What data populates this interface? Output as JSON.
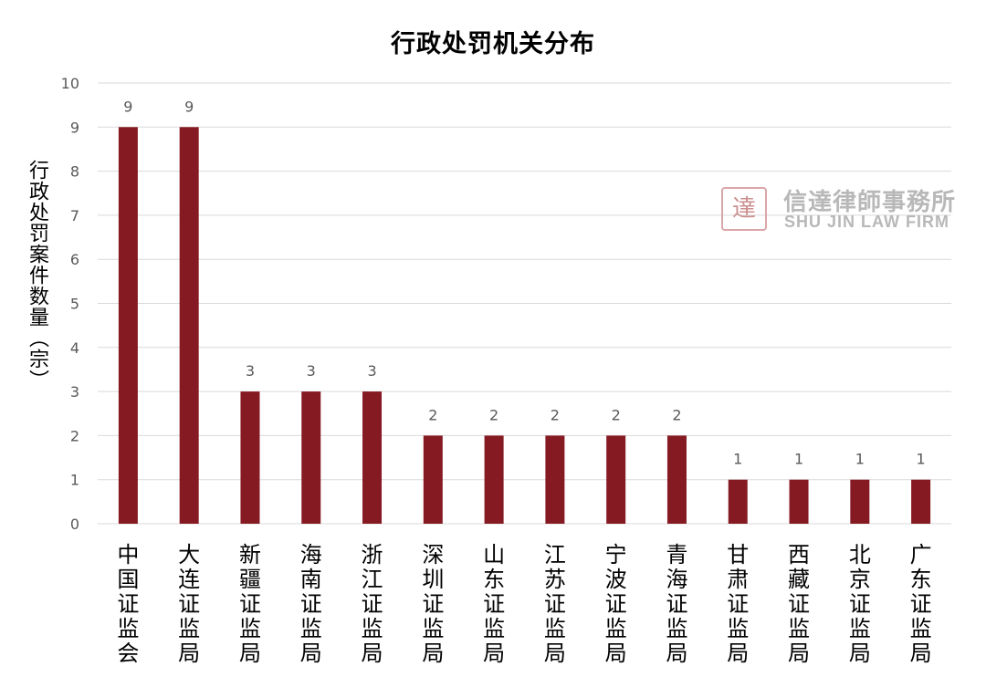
{
  "chart_data": {
    "type": "bar",
    "title": "行政处罚机关分布",
    "ylabel": "行政处罚案件数量（宗）",
    "xlabel": "",
    "categories": [
      "中国证监会",
      "大连证监局",
      "新疆证监局",
      "海南证监局",
      "浙江证监局",
      "深圳证监局",
      "山东证监局",
      "江苏证监局",
      "宁波证监局",
      "青海证监局",
      "甘肃证监局",
      "西藏证监局",
      "北京证监局",
      "广东证监局"
    ],
    "values": [
      9,
      9,
      3,
      3,
      3,
      2,
      2,
      2,
      2,
      2,
      1,
      1,
      1,
      1
    ],
    "ylim": [
      0,
      10
    ],
    "yticks": [
      "0",
      "1",
      "2",
      "3",
      "4",
      "5",
      "6",
      "7",
      "8",
      "9",
      "10"
    ],
    "grid": true,
    "legend": "none",
    "data_labels": true,
    "bar_color": "#861a22",
    "grid_color": "#d9d9d9"
  },
  "watermark": {
    "seal_text": "達",
    "name_cn": "信達律師事務所",
    "name_en": "SHU JIN LAW FIRM"
  }
}
